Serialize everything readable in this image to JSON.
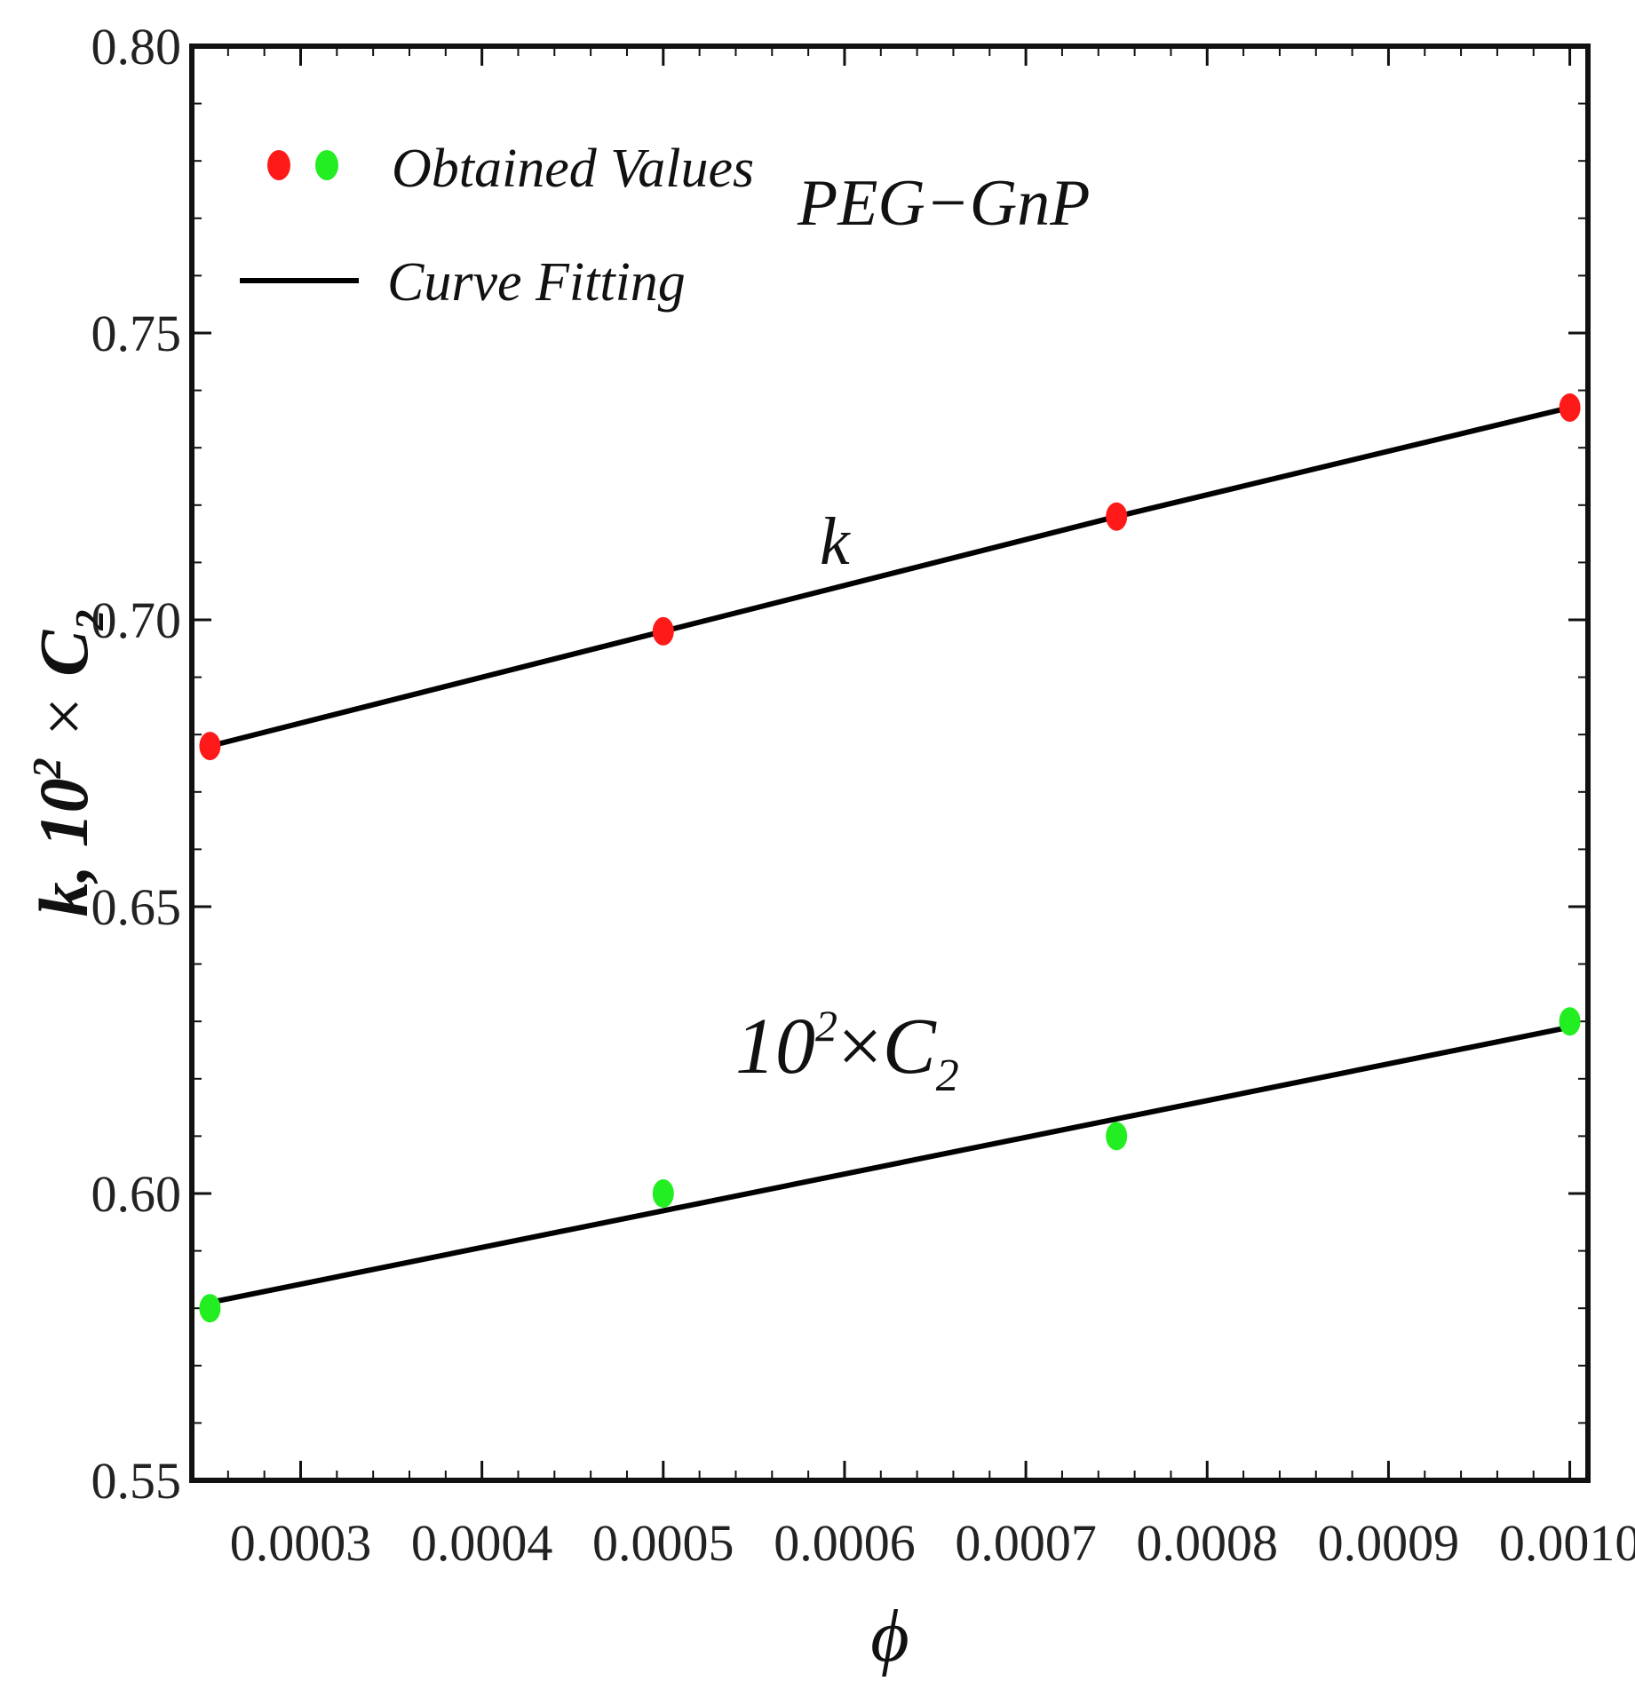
{
  "chart_data": {
    "type": "scatter",
    "title": "",
    "xlabel": "ϕ",
    "ylabel": "k, 10² × C₂",
    "ylabel_parts": {
      "a": "k, 10",
      "sup": "2",
      "b": " × ",
      "c": "C",
      "sub": "2"
    },
    "xlim": [
      0.00024,
      0.00101
    ],
    "ylim": [
      0.55,
      0.8
    ],
    "xticks": [
      0.0003,
      0.0004,
      0.0005,
      0.0006,
      0.0007,
      0.0008,
      0.0009,
      0.001
    ],
    "xtick_labels": [
      "0.0003",
      "0.0004",
      "0.0005",
      "0.0006",
      "0.0007",
      "0.0008",
      "0.0009",
      "0.0010"
    ],
    "yticks": [
      0.55,
      0.6,
      0.65,
      0.7,
      0.75,
      0.8
    ],
    "ytick_labels": [
      "0.55",
      "0.60",
      "0.65",
      "0.70",
      "0.75",
      "0.80"
    ],
    "series": [
      {
        "name": "k",
        "color": "#ff1a1a",
        "x": [
          0.00025,
          0.0005,
          0.00075,
          0.001
        ],
        "points": [
          0.678,
          0.698,
          0.718,
          0.737
        ],
        "fit": [
          0.678,
          0.698,
          0.718,
          0.737
        ]
      },
      {
        "name": "10² × C₂",
        "color": "#22ee22",
        "x": [
          0.00025,
          0.0005,
          0.00075,
          0.001
        ],
        "points": [
          0.58,
          0.6,
          0.61,
          0.63
        ],
        "fit": [
          0.581,
          0.597,
          0.613,
          0.629
        ]
      }
    ],
    "legend": {
      "position": "top-left",
      "entries": [
        {
          "label": "Obtained Values",
          "marker": "dots",
          "colors": [
            "#ff1a1a",
            "#22ee22"
          ]
        },
        {
          "label": "Curve Fitting",
          "marker": "line",
          "color": "#000000"
        }
      ]
    },
    "annotations": {
      "dataset": "PEG−GnP",
      "k_label": "k",
      "c2_label": {
        "base": "10",
        "sup": "2",
        "times": "×",
        "var": "C",
        "sub": "2"
      }
    }
  }
}
